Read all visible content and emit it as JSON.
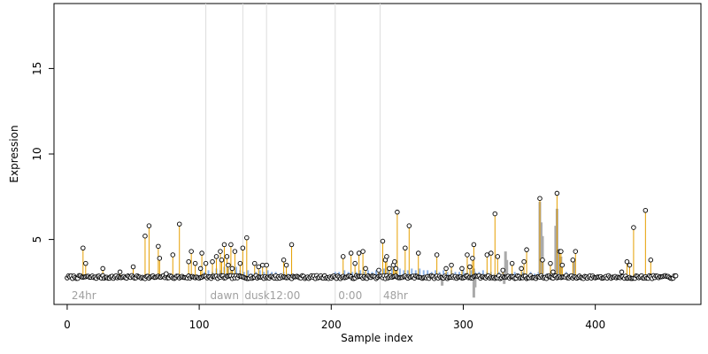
{
  "chart_data": {
    "type": "scatter",
    "xlabel": "Sample index",
    "ylabel": "Expression",
    "xlim": [
      -10,
      480
    ],
    "ylim": [
      1.2,
      18.8
    ],
    "xticks": [
      0,
      100,
      200,
      300,
      400
    ],
    "yticks": [
      5,
      10,
      15
    ],
    "x_tick_labels": [
      "0",
      "100",
      "200",
      "300",
      "400"
    ],
    "y_tick_labels": [
      "5",
      "10",
      "15"
    ],
    "baseline": 2.8,
    "n_samples": 462,
    "period_lines": [
      105,
      133,
      151,
      203,
      237
    ],
    "period_labels": [
      {
        "x": 2,
        "text": "24hr"
      },
      {
        "x": 107,
        "text": "dawn"
      },
      {
        "x": 133,
        "text": "dusk"
      },
      {
        "x": 152,
        "text": "12:00"
      },
      {
        "x": 204,
        "text": "0:00"
      },
      {
        "x": 238,
        "text": "48hr"
      }
    ],
    "peaks": [
      [
        12,
        4.5
      ],
      [
        14,
        3.6
      ],
      [
        27,
        3.3
      ],
      [
        40,
        3.1
      ],
      [
        50,
        3.4
      ],
      [
        59,
        5.2
      ],
      [
        62,
        5.8
      ],
      [
        69,
        4.6
      ],
      [
        70,
        3.9
      ],
      [
        75,
        3.0
      ],
      [
        80,
        4.1
      ],
      [
        85,
        5.9
      ],
      [
        92,
        3.7
      ],
      [
        94,
        4.3
      ],
      [
        97,
        3.6
      ],
      [
        101,
        3.3
      ],
      [
        102,
        4.2
      ],
      [
        105,
        3.6
      ],
      [
        110,
        3.7
      ],
      [
        113,
        4.0
      ],
      [
        116,
        4.3
      ],
      [
        117,
        3.8
      ],
      [
        119,
        4.7
      ],
      [
        121,
        4.0
      ],
      [
        122,
        3.5
      ],
      [
        124,
        4.7
      ],
      [
        125,
        3.3
      ],
      [
        127,
        4.3
      ],
      [
        131,
        3.6
      ],
      [
        133,
        4.5
      ],
      [
        136,
        5.1
      ],
      [
        142,
        3.6
      ],
      [
        145,
        3.4
      ],
      [
        148,
        3.5
      ],
      [
        151,
        3.5
      ],
      [
        164,
        3.8
      ],
      [
        166,
        3.5
      ],
      [
        170,
        4.7
      ],
      [
        209,
        4.0
      ],
      [
        215,
        4.2
      ],
      [
        218,
        3.6
      ],
      [
        221,
        4.2
      ],
      [
        224,
        4.3
      ],
      [
        226,
        3.3
      ],
      [
        236,
        3.2
      ],
      [
        239,
        4.9
      ],
      [
        241,
        3.8
      ],
      [
        242,
        4.0
      ],
      [
        244,
        3.3
      ],
      [
        247,
        3.5
      ],
      [
        248,
        3.7
      ],
      [
        249,
        3.3
      ],
      [
        250,
        6.6
      ],
      [
        256,
        4.5
      ],
      [
        259,
        5.8
      ],
      [
        266,
        4.2
      ],
      [
        280,
        4.1
      ],
      [
        287,
        3.3
      ],
      [
        291,
        3.5
      ],
      [
        299,
        3.3
      ],
      [
        303,
        4.1
      ],
      [
        305,
        3.4
      ],
      [
        307,
        3.9
      ],
      [
        308,
        4.7
      ],
      [
        318,
        4.1
      ],
      [
        321,
        4.2
      ],
      [
        324,
        6.5
      ],
      [
        326,
        4.0
      ],
      [
        330,
        3.2
      ],
      [
        337,
        3.6
      ],
      [
        344,
        3.3
      ],
      [
        346,
        3.7
      ],
      [
        348,
        4.4
      ],
      [
        358,
        7.4
      ],
      [
        360,
        3.8
      ],
      [
        366,
        3.6
      ],
      [
        368,
        3.1
      ],
      [
        371,
        7.7
      ],
      [
        373,
        4.3
      ],
      [
        374,
        4.3
      ],
      [
        375,
        3.5
      ],
      [
        383,
        3.8
      ],
      [
        385,
        4.3
      ],
      [
        420,
        3.1
      ],
      [
        424,
        3.7
      ],
      [
        426,
        3.5
      ],
      [
        429,
        5.7
      ],
      [
        438,
        6.7
      ],
      [
        442,
        3.8
      ]
    ],
    "blue_segments": [
      [
        104,
        3.1
      ],
      [
        107,
        3.2
      ],
      [
        110,
        3.1
      ],
      [
        113,
        3.3
      ],
      [
        116,
        3.2
      ],
      [
        119,
        3.4
      ],
      [
        122,
        3.3
      ],
      [
        125,
        3.2
      ],
      [
        128,
        3.4
      ],
      [
        131,
        3.2
      ],
      [
        134,
        3.1
      ],
      [
        137,
        3.2
      ],
      [
        140,
        3.0
      ],
      [
        143,
        3.1
      ],
      [
        146,
        3.2
      ],
      [
        149,
        3.1
      ],
      [
        152,
        3.2
      ],
      [
        155,
        3.1
      ],
      [
        158,
        3.1
      ],
      [
        161,
        3.0
      ],
      [
        164,
        3.1
      ],
      [
        167,
        3.0
      ],
      [
        170,
        3.0
      ],
      [
        203,
        3.1
      ],
      [
        206,
        3.1
      ],
      [
        210,
        3.2
      ],
      [
        213,
        3.1
      ],
      [
        216,
        3.1
      ],
      [
        219,
        3.1
      ],
      [
        222,
        3.2
      ],
      [
        225,
        3.1
      ],
      [
        228,
        3.2
      ],
      [
        231,
        3.1
      ],
      [
        234,
        3.2
      ],
      [
        237,
        3.1
      ],
      [
        240,
        3.3
      ],
      [
        243,
        3.2
      ],
      [
        246,
        3.3
      ],
      [
        249,
        3.2
      ],
      [
        252,
        3.3
      ],
      [
        255,
        3.2
      ],
      [
        258,
        3.2
      ],
      [
        261,
        3.3
      ],
      [
        264,
        3.2
      ],
      [
        267,
        3.3
      ],
      [
        270,
        3.2
      ],
      [
        273,
        3.2
      ],
      [
        276,
        3.1
      ],
      [
        279,
        3.2
      ],
      [
        282,
        3.1
      ],
      [
        285,
        3.2
      ],
      [
        288,
        3.1
      ],
      [
        291,
        3.2
      ],
      [
        294,
        3.1
      ],
      [
        297,
        3.1
      ],
      [
        300,
        3.2
      ],
      [
        303,
        3.1
      ],
      [
        306,
        3.2
      ],
      [
        309,
        3.1
      ],
      [
        312,
        3.1
      ],
      [
        315,
        3.2
      ],
      [
        318,
        3.1
      ],
      [
        321,
        3.1
      ],
      [
        324,
        3.0
      ],
      [
        327,
        3.1
      ],
      [
        330,
        3.0
      ],
      [
        333,
        3.1
      ],
      [
        336,
        3.0
      ],
      [
        339,
        3.1
      ],
      [
        342,
        3.0
      ],
      [
        345,
        3.1
      ],
      [
        348,
        3.0
      ],
      [
        351,
        3.1
      ],
      [
        354,
        3.0
      ],
      [
        357,
        3.1
      ],
      [
        360,
        3.0
      ],
      [
        363,
        3.0
      ],
      [
        366,
        3.1
      ],
      [
        369,
        3.0
      ],
      [
        372,
        3.0
      ],
      [
        375,
        3.0
      ],
      [
        378,
        3.1
      ],
      [
        381,
        3.0
      ],
      [
        384,
        3.0
      ]
    ],
    "gray_segments": [
      [
        284,
        2.8,
        2.3
      ],
      [
        308,
        3.3,
        1.6
      ],
      [
        309,
        2.8,
        2.2
      ],
      [
        331,
        3.0,
        2.4
      ],
      [
        332,
        2.8,
        4.3
      ],
      [
        333,
        3.8,
        2.8
      ],
      [
        358,
        3.0,
        7.2
      ],
      [
        359,
        3.0,
        6.0
      ],
      [
        360,
        3.0,
        5.2
      ],
      [
        370,
        3.0,
        5.8
      ],
      [
        371,
        3.0,
        6.8
      ],
      [
        372,
        3.0,
        4.4
      ],
      [
        373,
        3.0,
        3.9
      ],
      [
        374,
        3.0,
        4.0
      ],
      [
        384,
        3.0,
        3.7
      ]
    ],
    "colors": {
      "peak_line": "#e69f00",
      "blue_line": "#8fb4e8",
      "gray_line": "#aaaaaa",
      "period_line": "#dddddd",
      "point_fill": "#ffffff",
      "point_stroke": "#000000",
      "axis": "#000000"
    }
  }
}
